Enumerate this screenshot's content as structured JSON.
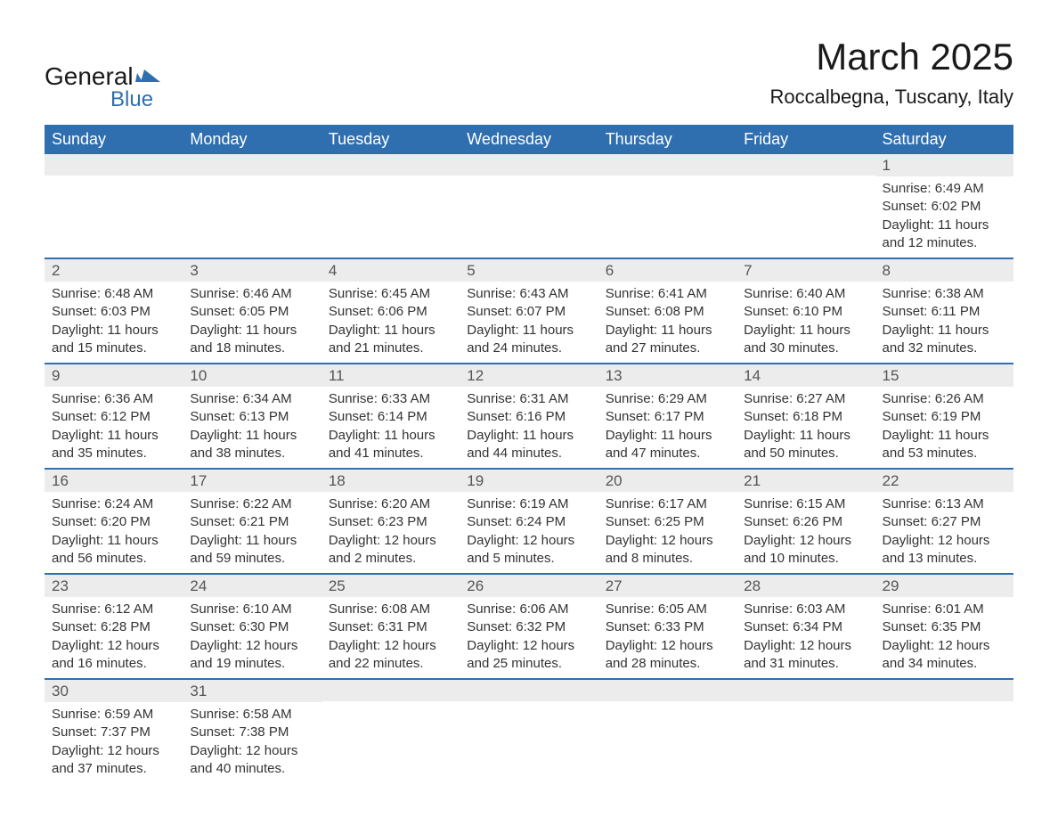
{
  "logo": {
    "general": "General",
    "blue": "Blue",
    "triangle_color": "#2f6fb0"
  },
  "title": "March 2025",
  "location": "Roccalbegna, Tuscany, Italy",
  "colors": {
    "header_bg": "#2f6fb0",
    "header_text": "#ffffff",
    "row_divider": "#2f6fb0",
    "daynum_bg": "#ececec",
    "text": "#333333",
    "page_bg": "#ffffff"
  },
  "weekdays": [
    "Sunday",
    "Monday",
    "Tuesday",
    "Wednesday",
    "Thursday",
    "Friday",
    "Saturday"
  ],
  "weeks": [
    [
      {
        "day": "",
        "sunrise": "",
        "sunset": "",
        "daylight": ""
      },
      {
        "day": "",
        "sunrise": "",
        "sunset": "",
        "daylight": ""
      },
      {
        "day": "",
        "sunrise": "",
        "sunset": "",
        "daylight": ""
      },
      {
        "day": "",
        "sunrise": "",
        "sunset": "",
        "daylight": ""
      },
      {
        "day": "",
        "sunrise": "",
        "sunset": "",
        "daylight": ""
      },
      {
        "day": "",
        "sunrise": "",
        "sunset": "",
        "daylight": ""
      },
      {
        "day": "1",
        "sunrise": "Sunrise: 6:49 AM",
        "sunset": "Sunset: 6:02 PM",
        "daylight": "Daylight: 11 hours and 12 minutes."
      }
    ],
    [
      {
        "day": "2",
        "sunrise": "Sunrise: 6:48 AM",
        "sunset": "Sunset: 6:03 PM",
        "daylight": "Daylight: 11 hours and 15 minutes."
      },
      {
        "day": "3",
        "sunrise": "Sunrise: 6:46 AM",
        "sunset": "Sunset: 6:05 PM",
        "daylight": "Daylight: 11 hours and 18 minutes."
      },
      {
        "day": "4",
        "sunrise": "Sunrise: 6:45 AM",
        "sunset": "Sunset: 6:06 PM",
        "daylight": "Daylight: 11 hours and 21 minutes."
      },
      {
        "day": "5",
        "sunrise": "Sunrise: 6:43 AM",
        "sunset": "Sunset: 6:07 PM",
        "daylight": "Daylight: 11 hours and 24 minutes."
      },
      {
        "day": "6",
        "sunrise": "Sunrise: 6:41 AM",
        "sunset": "Sunset: 6:08 PM",
        "daylight": "Daylight: 11 hours and 27 minutes."
      },
      {
        "day": "7",
        "sunrise": "Sunrise: 6:40 AM",
        "sunset": "Sunset: 6:10 PM",
        "daylight": "Daylight: 11 hours and 30 minutes."
      },
      {
        "day": "8",
        "sunrise": "Sunrise: 6:38 AM",
        "sunset": "Sunset: 6:11 PM",
        "daylight": "Daylight: 11 hours and 32 minutes."
      }
    ],
    [
      {
        "day": "9",
        "sunrise": "Sunrise: 6:36 AM",
        "sunset": "Sunset: 6:12 PM",
        "daylight": "Daylight: 11 hours and 35 minutes."
      },
      {
        "day": "10",
        "sunrise": "Sunrise: 6:34 AM",
        "sunset": "Sunset: 6:13 PM",
        "daylight": "Daylight: 11 hours and 38 minutes."
      },
      {
        "day": "11",
        "sunrise": "Sunrise: 6:33 AM",
        "sunset": "Sunset: 6:14 PM",
        "daylight": "Daylight: 11 hours and 41 minutes."
      },
      {
        "day": "12",
        "sunrise": "Sunrise: 6:31 AM",
        "sunset": "Sunset: 6:16 PM",
        "daylight": "Daylight: 11 hours and 44 minutes."
      },
      {
        "day": "13",
        "sunrise": "Sunrise: 6:29 AM",
        "sunset": "Sunset: 6:17 PM",
        "daylight": "Daylight: 11 hours and 47 minutes."
      },
      {
        "day": "14",
        "sunrise": "Sunrise: 6:27 AM",
        "sunset": "Sunset: 6:18 PM",
        "daylight": "Daylight: 11 hours and 50 minutes."
      },
      {
        "day": "15",
        "sunrise": "Sunrise: 6:26 AM",
        "sunset": "Sunset: 6:19 PM",
        "daylight": "Daylight: 11 hours and 53 minutes."
      }
    ],
    [
      {
        "day": "16",
        "sunrise": "Sunrise: 6:24 AM",
        "sunset": "Sunset: 6:20 PM",
        "daylight": "Daylight: 11 hours and 56 minutes."
      },
      {
        "day": "17",
        "sunrise": "Sunrise: 6:22 AM",
        "sunset": "Sunset: 6:21 PM",
        "daylight": "Daylight: 11 hours and 59 minutes."
      },
      {
        "day": "18",
        "sunrise": "Sunrise: 6:20 AM",
        "sunset": "Sunset: 6:23 PM",
        "daylight": "Daylight: 12 hours and 2 minutes."
      },
      {
        "day": "19",
        "sunrise": "Sunrise: 6:19 AM",
        "sunset": "Sunset: 6:24 PM",
        "daylight": "Daylight: 12 hours and 5 minutes."
      },
      {
        "day": "20",
        "sunrise": "Sunrise: 6:17 AM",
        "sunset": "Sunset: 6:25 PM",
        "daylight": "Daylight: 12 hours and 8 minutes."
      },
      {
        "day": "21",
        "sunrise": "Sunrise: 6:15 AM",
        "sunset": "Sunset: 6:26 PM",
        "daylight": "Daylight: 12 hours and 10 minutes."
      },
      {
        "day": "22",
        "sunrise": "Sunrise: 6:13 AM",
        "sunset": "Sunset: 6:27 PM",
        "daylight": "Daylight: 12 hours and 13 minutes."
      }
    ],
    [
      {
        "day": "23",
        "sunrise": "Sunrise: 6:12 AM",
        "sunset": "Sunset: 6:28 PM",
        "daylight": "Daylight: 12 hours and 16 minutes."
      },
      {
        "day": "24",
        "sunrise": "Sunrise: 6:10 AM",
        "sunset": "Sunset: 6:30 PM",
        "daylight": "Daylight: 12 hours and 19 minutes."
      },
      {
        "day": "25",
        "sunrise": "Sunrise: 6:08 AM",
        "sunset": "Sunset: 6:31 PM",
        "daylight": "Daylight: 12 hours and 22 minutes."
      },
      {
        "day": "26",
        "sunrise": "Sunrise: 6:06 AM",
        "sunset": "Sunset: 6:32 PM",
        "daylight": "Daylight: 12 hours and 25 minutes."
      },
      {
        "day": "27",
        "sunrise": "Sunrise: 6:05 AM",
        "sunset": "Sunset: 6:33 PM",
        "daylight": "Daylight: 12 hours and 28 minutes."
      },
      {
        "day": "28",
        "sunrise": "Sunrise: 6:03 AM",
        "sunset": "Sunset: 6:34 PM",
        "daylight": "Daylight: 12 hours and 31 minutes."
      },
      {
        "day": "29",
        "sunrise": "Sunrise: 6:01 AM",
        "sunset": "Sunset: 6:35 PM",
        "daylight": "Daylight: 12 hours and 34 minutes."
      }
    ],
    [
      {
        "day": "30",
        "sunrise": "Sunrise: 6:59 AM",
        "sunset": "Sunset: 7:37 PM",
        "daylight": "Daylight: 12 hours and 37 minutes."
      },
      {
        "day": "31",
        "sunrise": "Sunrise: 6:58 AM",
        "sunset": "Sunset: 7:38 PM",
        "daylight": "Daylight: 12 hours and 40 minutes."
      },
      {
        "day": "",
        "sunrise": "",
        "sunset": "",
        "daylight": ""
      },
      {
        "day": "",
        "sunrise": "",
        "sunset": "",
        "daylight": ""
      },
      {
        "day": "",
        "sunrise": "",
        "sunset": "",
        "daylight": ""
      },
      {
        "day": "",
        "sunrise": "",
        "sunset": "",
        "daylight": ""
      },
      {
        "day": "",
        "sunrise": "",
        "sunset": "",
        "daylight": ""
      }
    ]
  ]
}
